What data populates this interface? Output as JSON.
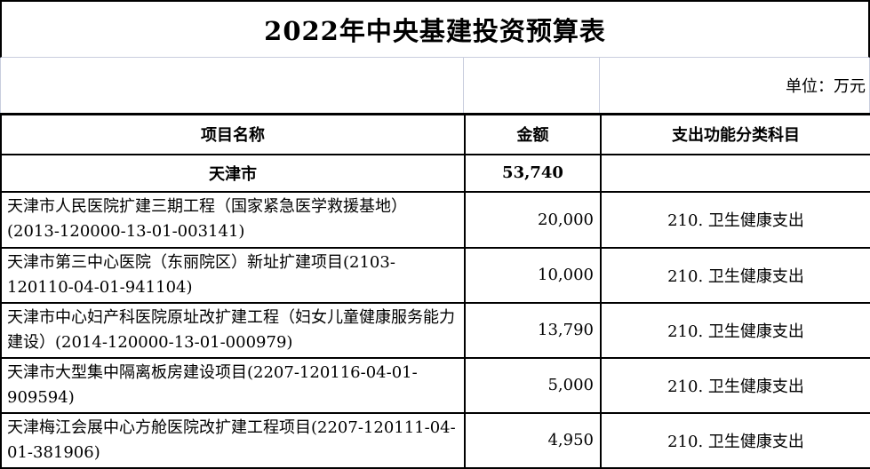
{
  "title": "2022年中央基建投资预算表",
  "unit_note": "单位：万元",
  "columns": [
    {
      "label": "项目名称"
    },
    {
      "label": "金额"
    },
    {
      "label": "支出功能分类科目"
    }
  ],
  "summary": {
    "name": "天津市",
    "amount": "53,740",
    "category": ""
  },
  "rows": [
    {
      "name": "天津市人民医院扩建三期工程（国家紧急医学救援基地）(2013-120000-13-01-003141)",
      "amount": "20,000",
      "category": "210. 卫生健康支出"
    },
    {
      "name": "天津市第三中心医院（东丽院区）新址扩建项目(2103-120110-04-01-941104)",
      "amount": "10,000",
      "category": "210. 卫生健康支出"
    },
    {
      "name": "天津市中心妇产科医院原址改扩建工程（妇女儿童健康服务能力建设）(2014-120000-13-01-000979)",
      "amount": "13,790",
      "category": "210. 卫生健康支出"
    },
    {
      "name": "天津市大型集中隔离板房建设项目(2207-120116-04-01-909594)",
      "amount": "5,000",
      "category": "210. 卫生健康支出"
    },
    {
      "name": "天津梅江会展中心方舱医院改扩建工程项目(2207-120111-04-01-381906)",
      "amount": "4,950",
      "category": "210. 卫生健康支出"
    }
  ],
  "colors": {
    "border": "#000000",
    "gridline": "#c9cede",
    "text": "#000000",
    "background": "#ffffff"
  }
}
